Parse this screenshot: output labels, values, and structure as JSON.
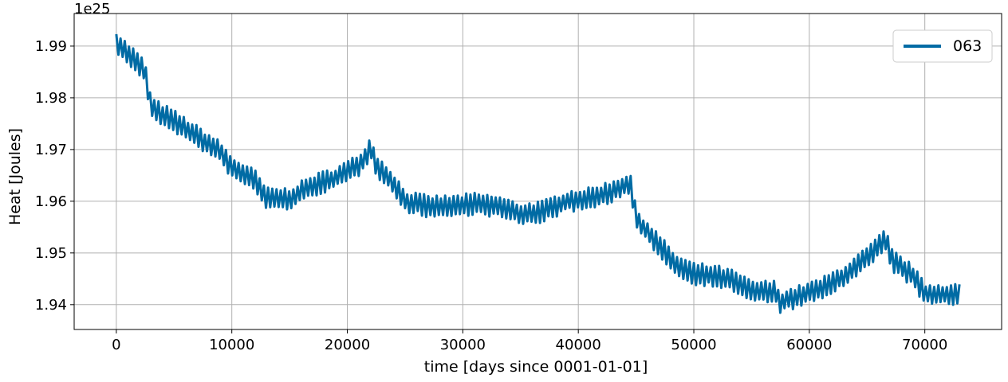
{
  "chart_data": {
    "type": "line",
    "xlabel": "time [days since 0001-01-01]",
    "ylabel": "Heat [Joules]",
    "y_offset_text": "1e25",
    "xlim": [
      -3650,
      76650
    ],
    "ylim": [
      1.9352,
      1.9963
    ],
    "x_ticks": [
      0,
      10000,
      20000,
      30000,
      40000,
      50000,
      60000,
      70000
    ],
    "x_tick_labels": [
      "0",
      "10000",
      "20000",
      "30000",
      "40000",
      "50000",
      "60000",
      "70000"
    ],
    "y_ticks": [
      1.94,
      1.95,
      1.96,
      1.97,
      1.98,
      1.99
    ],
    "y_tick_labels": [
      "1.94",
      "1.95",
      "1.96",
      "1.97",
      "1.98",
      "1.99"
    ],
    "grid": true,
    "legend_position": "top-right",
    "color": "#006ba4",
    "series": [
      {
        "name": "063",
        "seasonal_amplitude": 0.0035,
        "sample_interval_days": 182.5,
        "x": [
          0,
          500,
          1500,
          2500,
          3000,
          5000,
          7000,
          9000,
          10000,
          12000,
          13000,
          15000,
          17000,
          19000,
          21000,
          22100,
          22500,
          24000,
          25000,
          27000,
          29000,
          31000,
          33000,
          35000,
          37000,
          39000,
          41000,
          43000,
          44500,
          45000,
          47000,
          48500,
          50000,
          52000,
          53500,
          55000,
          57000,
          57500,
          59000,
          61000,
          63000,
          65000,
          66600,
          67200,
          69000,
          70000,
          72000,
          73000
        ],
        "y": [
          1.991,
          1.9895,
          1.9875,
          1.985,
          1.978,
          1.9755,
          1.9725,
          1.9695,
          1.9665,
          1.964,
          1.9605,
          1.9605,
          1.963,
          1.9645,
          1.967,
          1.9705,
          1.967,
          1.9635,
          1.96,
          1.959,
          1.959,
          1.9595,
          1.959,
          1.9575,
          1.958,
          1.96,
          1.9605,
          1.962,
          1.9635,
          1.9565,
          1.9515,
          1.9475,
          1.946,
          1.9455,
          1.9445,
          1.9425,
          1.9425,
          1.9405,
          1.9415,
          1.943,
          1.9455,
          1.949,
          1.9525,
          1.9485,
          1.9455,
          1.942,
          1.942,
          1.942
        ]
      }
    ]
  }
}
